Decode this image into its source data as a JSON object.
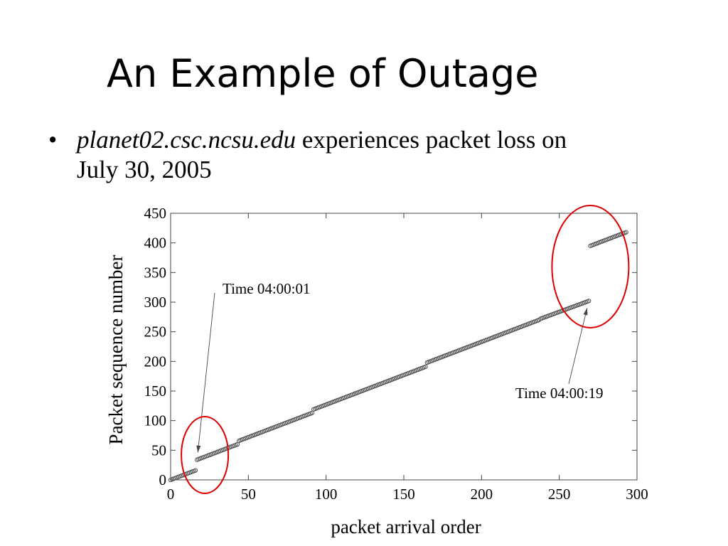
{
  "slide": {
    "title": "An Example of Outage",
    "bullet": {
      "host": "planet02.csc.ncsu.edu",
      "text": "experiences packet loss on",
      "date": "July 30, 2005"
    }
  },
  "chart_data": {
    "type": "scatter",
    "xlabel": "packet arrival order",
    "ylabel": "Packet sequence number",
    "xlim": [
      0,
      300
    ],
    "ylim": [
      0,
      450
    ],
    "xticks": [
      0,
      50,
      100,
      150,
      200,
      250,
      300
    ],
    "yticks": [
      0,
      50,
      100,
      150,
      200,
      250,
      300,
      350,
      400,
      450
    ],
    "grid": false,
    "marker_color": "#555555",
    "segments": [
      {
        "x": [
          0,
          16
        ],
        "y": [
          0,
          16
        ]
      },
      {
        "x": [
          17,
          43
        ],
        "y": [
          34,
          60
        ]
      },
      {
        "x": [
          44,
          91
        ],
        "y": [
          66,
          113
        ]
      },
      {
        "x": [
          92,
          164
        ],
        "y": [
          119,
          191
        ]
      },
      {
        "x": [
          165,
          237
        ],
        "y": [
          198,
          270
        ]
      },
      {
        "x": [
          238,
          269
        ],
        "y": [
          272,
          302
        ]
      },
      {
        "x": [
          270,
          293
        ],
        "y": [
          395,
          418
        ]
      }
    ],
    "annotations": [
      {
        "text": "Time 04:00:01",
        "x": 17,
        "y": 34
      },
      {
        "text": "Time 04:00:19",
        "x": 269,
        "y": 302
      }
    ],
    "highlights": [
      {
        "cx": 22,
        "cy": 42,
        "color": "#dd0000"
      },
      {
        "cx": 270,
        "cy": 360,
        "color": "#dd0000"
      }
    ]
  }
}
